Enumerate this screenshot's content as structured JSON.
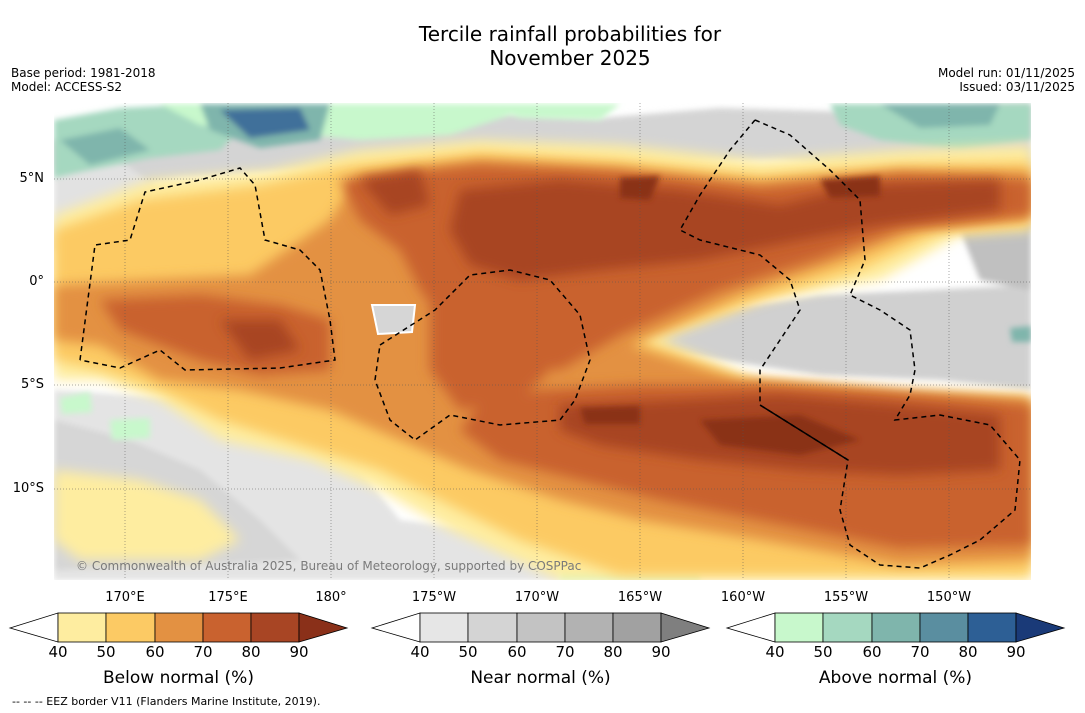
{
  "title": {
    "line1": "Tercile rainfall probabilities for",
    "line2": "November 2025"
  },
  "meta": {
    "base_period": "Base period: 1981-2018",
    "model": "Model: ACCESS-S2",
    "model_run": "Model run: 01/11/2025",
    "issued": "Issued: 03/11/2025"
  },
  "axes": {
    "lat_labels": [
      "5°N",
      "0°",
      "5°S",
      "10°S"
    ],
    "lon_labels": [
      "170°E",
      "175°E",
      "180°",
      "175°W",
      "170°W",
      "165°W",
      "160°W",
      "155°W",
      "150°W"
    ]
  },
  "copyright": "© Commonwealth of Australia 2025, Bureau of Meteorology, supported by COSPPac",
  "colorbars": {
    "below": {
      "title": "Below normal (%)",
      "ticks": [
        "40",
        "50",
        "60",
        "70",
        "80",
        "90"
      ],
      "colors": [
        "#ffffff",
        "#feeda0",
        "#fcca64",
        "#e39142",
        "#c9622f",
        "#a84524",
        "#8a3019"
      ]
    },
    "near": {
      "title": "Near normal (%)",
      "ticks": [
        "40",
        "50",
        "60",
        "70",
        "80",
        "90"
      ],
      "colors": [
        "#ffffff",
        "#e6e6e6",
        "#d4d4d4",
        "#c3c3c3",
        "#b2b2b2",
        "#a1a1a1",
        "#7f7f7f"
      ]
    },
    "above": {
      "title": "Above normal (%)",
      "ticks": [
        "40",
        "50",
        "60",
        "70",
        "80",
        "90"
      ],
      "colors": [
        "#ffffff",
        "#c8f8cc",
        "#a5d8c0",
        "#7fb5ac",
        "#5a8ea0",
        "#2d5f95",
        "#1a3a78"
      ]
    }
  },
  "eez_note": "-- -- -- EEZ border V11 (Flanders Marine Institute, 2019)."
}
